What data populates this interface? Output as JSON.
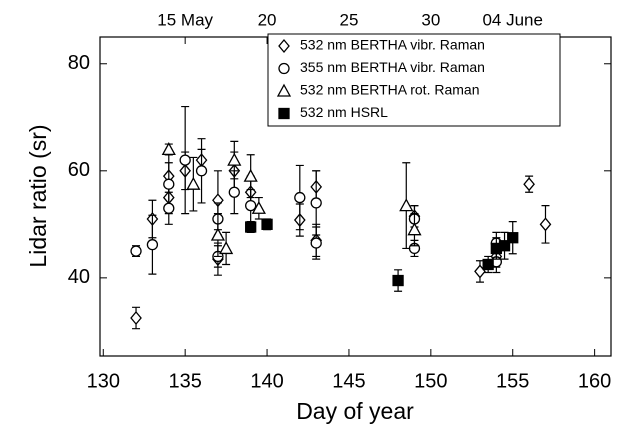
{
  "chart_data": {
    "type": "scatter",
    "x_label": "Day of year",
    "y_label": "Lidar ratio (sr)",
    "xlim": [
      129.8,
      161
    ],
    "ylim": [
      25.4,
      85
    ],
    "xticks": [
      130,
      135,
      140,
      145,
      150,
      155,
      160
    ],
    "yticks": [
      40,
      60,
      80
    ],
    "top_xticks": [
      {
        "value": 135,
        "label": "15 May"
      },
      {
        "value": 140,
        "label": "20"
      },
      {
        "value": 145,
        "label": "25"
      },
      {
        "value": 150,
        "label": "30"
      },
      {
        "value": 155,
        "label": "04 June"
      }
    ],
    "legend": "upper right",
    "series": [
      {
        "name": "532 nm BERTHA vibr. Raman",
        "marker": "diamond",
        "color": "#000000",
        "filled": false,
        "x": [
          132,
          133,
          134,
          134,
          135,
          136,
          137,
          137,
          138,
          139,
          142,
          143,
          143,
          149,
          153,
          154,
          156,
          157
        ],
        "values": [
          32.5,
          51,
          59,
          55,
          60,
          62,
          54.5,
          43.5,
          60,
          56,
          50.8,
          57,
          47,
          51.5,
          41.2,
          44,
          57.5,
          50
        ],
        "errors": [
          2,
          3.5,
          4,
          3,
          3.5,
          2,
          5.5,
          3,
          3.5,
          3,
          3,
          3,
          3,
          2,
          2,
          2,
          1.5,
          3.5
        ]
      },
      {
        "name": "355 nm BERTHA vibr. Raman",
        "marker": "circle",
        "color": "#000000",
        "filled": false,
        "x": [
          132,
          133,
          134,
          134,
          135,
          136,
          137,
          137,
          138,
          139,
          142,
          143,
          143,
          149,
          149,
          154,
          154
        ],
        "values": [
          45,
          46.2,
          53,
          57.5,
          62,
          60,
          51,
          44,
          56,
          53.5,
          55,
          54,
          46.5,
          45.5,
          51,
          43,
          46.5
        ],
        "errors": [
          1,
          5.5,
          3,
          4,
          10,
          6,
          3,
          2,
          4,
          3,
          6,
          6,
          3,
          1.5,
          2.5,
          2,
          2
        ]
      },
      {
        "name": "532 nm BERTHA rot. Raman",
        "marker": "triangle",
        "color": "#000000",
        "filled": false,
        "x": [
          134,
          135.5,
          137,
          137.5,
          138,
          139,
          139.5,
          148.5,
          149
        ],
        "values": [
          64,
          57.5,
          48,
          45.5,
          62,
          59,
          53,
          53.5,
          49
        ],
        "errors": [
          1,
          5,
          4,
          3,
          3.5,
          4,
          2,
          8,
          3
        ]
      },
      {
        "name": "532 nm HSRL",
        "marker": "square",
        "color": "#000000",
        "filled": true,
        "x": [
          139,
          140,
          148,
          153.5,
          154,
          154.5,
          155
        ],
        "values": [
          49.5,
          50,
          39.5,
          42.5,
          45.5,
          46,
          47.5
        ],
        "errors": [
          1,
          1,
          2,
          1.5,
          2,
          2.5,
          3
        ]
      }
    ]
  }
}
